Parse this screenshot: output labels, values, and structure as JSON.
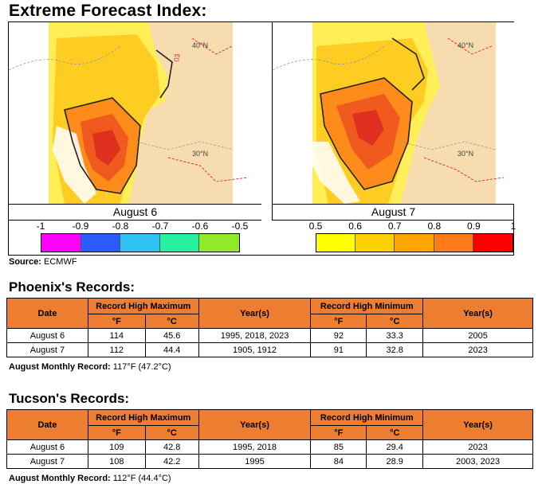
{
  "title": "Extreme Forecast Index:",
  "maps": [
    {
      "label": "August 6",
      "lat_labels": [
        "40°N",
        "30°N"
      ],
      "map_text": "03"
    },
    {
      "label": "August 7",
      "lat_labels": [
        "40°N",
        "30°N"
      ]
    }
  ],
  "scale_left": {
    "ticks": [
      "-1",
      "-0.9",
      "-0.8",
      "-0.7",
      "-0.6",
      "-0.5"
    ],
    "colors": [
      "#ff00ff",
      "#2a5cff",
      "#2ec2f5",
      "#27f0a0",
      "#8fea2a"
    ]
  },
  "scale_right": {
    "ticks": [
      "0.5",
      "0.6",
      "0.7",
      "0.8",
      "0.9",
      "1"
    ],
    "colors": [
      "#ffff00",
      "#ffd000",
      "#ffa500",
      "#ff7a1a",
      "#ff0000"
    ]
  },
  "source": {
    "label": "Source:",
    "value": "ECMWF"
  },
  "phoenix": {
    "title": "Phoenix's Records:",
    "headers": {
      "date": "Date",
      "max": "Record High Maximum",
      "years": "Year(s)",
      "min": "Record High Minimum",
      "f": "°F",
      "c": "°C"
    },
    "rows": [
      {
        "date": "August 6",
        "max_f": "114",
        "max_c": "45.6",
        "max_years": "1995, 2018, 2023",
        "min_f": "92",
        "min_c": "33.3",
        "min_years": "2005"
      },
      {
        "date": "August 7",
        "max_f": "112",
        "max_c": "44.4",
        "max_years": "1905, 1912",
        "min_f": "91",
        "min_c": "32.8",
        "min_years": "2023"
      }
    ],
    "monthly_label": "August Monthly Record:",
    "monthly_value": "117°F (47.2°C)"
  },
  "tucson": {
    "title": "Tucson's Records:",
    "headers": {
      "date": "Date",
      "max": "Record High Maximum",
      "years": "Year(s)",
      "min": "Record High Minimum",
      "f": "°F",
      "c": "°C"
    },
    "rows": [
      {
        "date": "August 6",
        "max_f": "109",
        "max_c": "42.8",
        "max_years": "1995, 2018",
        "min_f": "85",
        "min_c": "29.4",
        "min_years": "2023"
      },
      {
        "date": "August 7",
        "max_f": "108",
        "max_c": "42.2",
        "max_years": "1995",
        "min_f": "84",
        "min_c": "28.9",
        "min_years": "2003, 2023"
      }
    ],
    "monthly_label": "August Monthly Record:",
    "monthly_value": "112°F (44.4°C)"
  }
}
